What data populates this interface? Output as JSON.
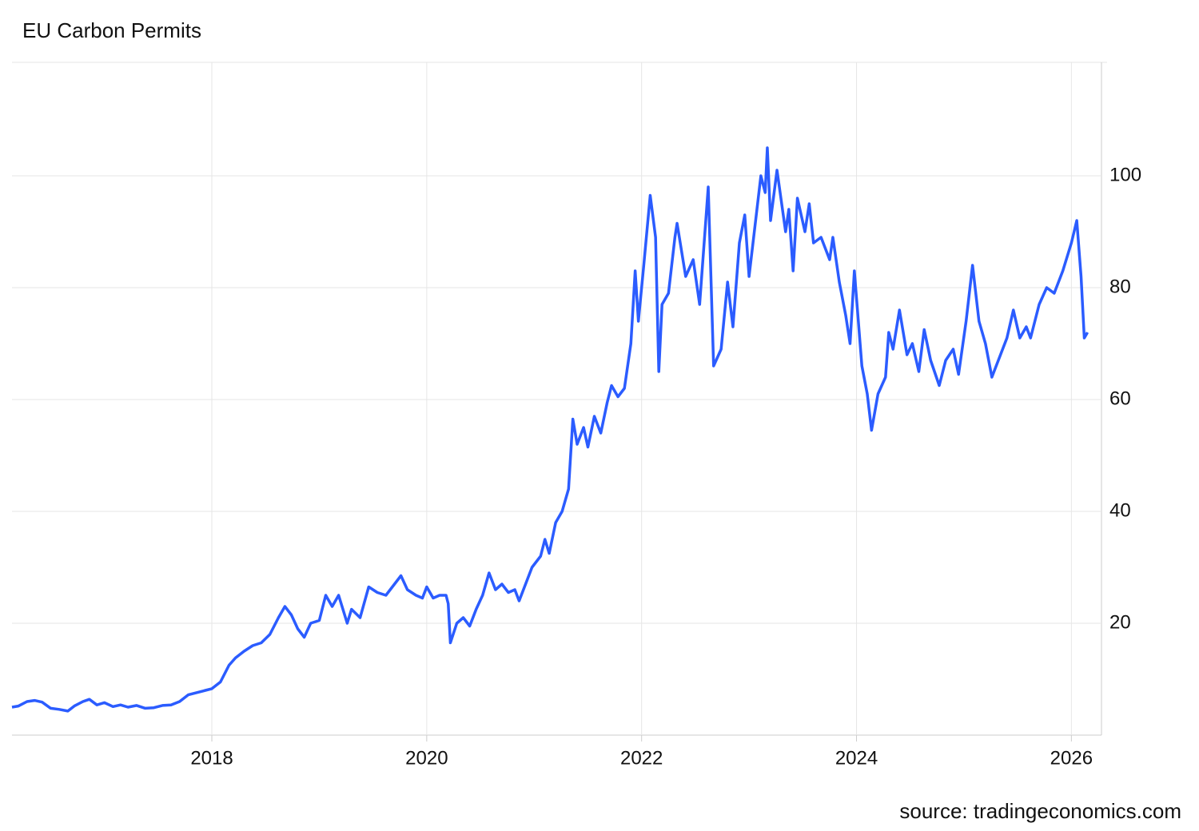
{
  "chart_data": {
    "type": "line",
    "title": "EU Carbon Permits",
    "source": "source: tradingeconomics.com",
    "x": [
      2016.14,
      2016.2,
      2016.28,
      2016.35,
      2016.42,
      2016.5,
      2016.58,
      2016.66,
      2016.72,
      2016.8,
      2016.86,
      2016.93,
      2017.0,
      2017.08,
      2017.15,
      2017.22,
      2017.3,
      2017.38,
      2017.46,
      2017.54,
      2017.62,
      2017.7,
      2017.78,
      2017.86,
      2017.94,
      2018.0,
      2018.08,
      2018.16,
      2018.22,
      2018.3,
      2018.38,
      2018.46,
      2018.54,
      2018.62,
      2018.68,
      2018.74,
      2018.8,
      2018.86,
      2018.92,
      2019.0,
      2019.06,
      2019.12,
      2019.18,
      2019.26,
      2019.3,
      2019.38,
      2019.46,
      2019.54,
      2019.62,
      2019.7,
      2019.76,
      2019.82,
      2019.9,
      2019.96,
      2020.0,
      2020.06,
      2020.12,
      2020.18,
      2020.2,
      2020.22,
      2020.28,
      2020.34,
      2020.4,
      2020.46,
      2020.52,
      2020.58,
      2020.64,
      2020.7,
      2020.76,
      2020.82,
      2020.86,
      2020.92,
      2020.98,
      2021.06,
      2021.1,
      2021.14,
      2021.2,
      2021.26,
      2021.32,
      2021.36,
      2021.4,
      2021.46,
      2021.5,
      2021.56,
      2021.62,
      2021.68,
      2021.72,
      2021.78,
      2021.84,
      2021.9,
      2021.94,
      2021.97,
      2022.02,
      2022.08,
      2022.13,
      2022.16,
      2022.19,
      2022.25,
      2022.31,
      2022.33,
      2022.41,
      2022.48,
      2022.54,
      2022.62,
      2022.67,
      2022.74,
      2022.8,
      2022.85,
      2022.91,
      2022.96,
      2023.0,
      2023.11,
      2023.15,
      2023.17,
      2023.2,
      2023.26,
      2023.34,
      2023.37,
      2023.41,
      2023.45,
      2023.52,
      2023.56,
      2023.6,
      2023.67,
      2023.75,
      2023.78,
      2023.84,
      2023.9,
      2023.94,
      2023.98,
      2024.05,
      2024.1,
      2024.14,
      2024.2,
      2024.27,
      2024.3,
      2024.34,
      2024.4,
      2024.47,
      2024.52,
      2024.58,
      2024.63,
      2024.69,
      2024.77,
      2024.83,
      2024.9,
      2024.95,
      2025.02,
      2025.08,
      2025.14,
      2025.2,
      2025.26,
      2025.34,
      2025.4,
      2025.46,
      2025.52,
      2025.58,
      2025.62,
      2025.7,
      2025.77,
      2025.84,
      2025.92,
      2026.0,
      2026.05,
      2026.09,
      2026.12,
      2026.15
    ],
    "series": [
      {
        "name": "EU Carbon Permits",
        "color": "#2b5cff",
        "values": [
          5.0,
          5.2,
          6.0,
          6.2,
          5.9,
          4.8,
          4.6,
          4.3,
          5.2,
          6.0,
          6.4,
          5.4,
          5.8,
          5.1,
          5.4,
          5.0,
          5.3,
          4.8,
          4.9,
          5.3,
          5.4,
          6.0,
          7.2,
          7.6,
          8.0,
          8.3,
          9.5,
          12.5,
          13.8,
          15.0,
          16.0,
          16.5,
          18.0,
          21.0,
          23.0,
          21.5,
          19.0,
          17.5,
          20.0,
          20.5,
          25.0,
          23.0,
          25.0,
          20.0,
          22.5,
          21.0,
          26.5,
          25.5,
          25.0,
          27.0,
          28.5,
          26.0,
          25.0,
          24.5,
          26.5,
          24.5,
          25.0,
          25.0,
          23.5,
          16.5,
          20.0,
          21.0,
          19.5,
          22.5,
          25.0,
          29.0,
          26.0,
          27.0,
          25.5,
          26.0,
          24.0,
          27.0,
          30.0,
          32.0,
          35.0,
          32.5,
          38.0,
          40.0,
          44.0,
          56.5,
          52.0,
          55.0,
          51.5,
          57.0,
          54.0,
          59.5,
          62.5,
          60.5,
          62.0,
          70.0,
          83.0,
          74.0,
          84.0,
          96.5,
          89.0,
          65.0,
          77.0,
          79.0,
          89.0,
          91.5,
          82.0,
          85.0,
          77.0,
          98.0,
          66.0,
          69.0,
          81.0,
          73.0,
          88.0,
          93.0,
          82.0,
          100.0,
          97.0,
          105.0,
          92.0,
          101.0,
          90.0,
          94.0,
          83.0,
          96.0,
          90.0,
          95.0,
          88.0,
          89.0,
          85.0,
          89.0,
          81.0,
          75.0,
          70.0,
          83.0,
          66.0,
          61.0,
          54.5,
          61.0,
          64.0,
          72.0,
          69.0,
          76.0,
          68.0,
          70.0,
          65.0,
          72.5,
          67.0,
          62.5,
          67.0,
          69.0,
          64.5,
          74.0,
          84.0,
          74.0,
          70.0,
          64.0,
          68.0,
          71.0,
          76.0,
          71.0,
          73.0,
          71.0,
          77.0,
          80.0,
          79.0,
          83.0,
          88.0,
          92.0,
          82.0,
          71.0,
          72.0
        ]
      }
    ],
    "xlim": [
      2016.14,
      2026.28
    ],
    "xticks": [
      2018,
      2020,
      2022,
      2024,
      2026
    ],
    "ylim": [
      0,
      120
    ],
    "yticks": [
      20,
      40,
      60,
      80,
      100
    ],
    "grid": true
  }
}
